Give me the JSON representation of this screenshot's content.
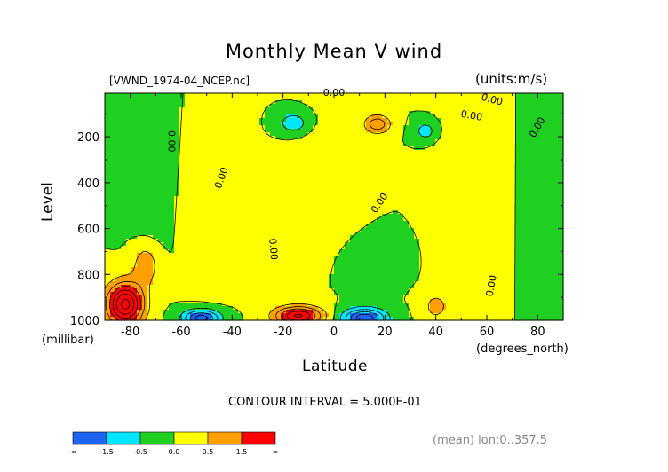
{
  "chart_data": {
    "type": "contour",
    "title": "Monthly Mean V wind",
    "file_label": "[VWND_1974-04_NCEP.nc]",
    "units_label": "(units:m/s)",
    "xlabel": "Latitude",
    "x_unit": "(degrees_north)",
    "ylabel": "Level",
    "y_unit": "(millibar)",
    "xlim": [
      -90,
      90
    ],
    "ylim": [
      1000,
      10
    ],
    "x_ticks": [
      -80,
      -60,
      -40,
      -20,
      0,
      20,
      40,
      60,
      80
    ],
    "x_tick_labels": [
      "-80",
      "-60",
      "-40",
      "-20",
      "0",
      "20",
      "40",
      "60",
      "80"
    ],
    "y_ticks": [
      200,
      400,
      600,
      800,
      1000
    ],
    "y_tick_labels": [
      "200",
      "400",
      "600",
      "800",
      "1000"
    ],
    "contour_interval_text": "CONTOUR INTERVAL = 5.000E-01",
    "contour_interval": 0.5,
    "contour_label_text": "0.00",
    "colorbar": {
      "colors": [
        "#1e64f0",
        "#00e6ff",
        "#20d020",
        "#ffff00",
        "#ffa000",
        "#ff0000"
      ],
      "tick_labels": [
        "-∞",
        "-1.5",
        "-0.5",
        "0.0",
        "0.5",
        "1.5",
        "∞"
      ]
    },
    "footer_text": "(mean) lon:0..357.5"
  }
}
